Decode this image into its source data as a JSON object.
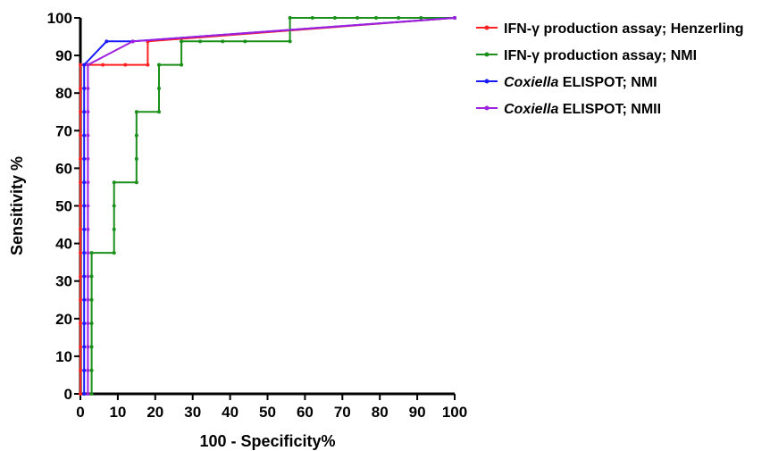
{
  "chart_data": {
    "type": "line",
    "xlabel": "100 - Specificity%",
    "ylabel": "Sensitivity %",
    "xlim": [
      0,
      100
    ],
    "ylim": [
      0,
      100
    ],
    "xticks": [
      0,
      10,
      20,
      30,
      40,
      50,
      60,
      70,
      80,
      90,
      100
    ],
    "yticks": [
      0,
      10,
      20,
      30,
      40,
      50,
      60,
      70,
      80,
      90,
      100
    ],
    "grid": false,
    "legend_position": "right",
    "series": [
      {
        "name_parts": [
          {
            "text": "IFN-γ production assay; Henzerling",
            "italic": false
          }
        ],
        "color": "#ff2020",
        "x": [
          0,
          0,
          0,
          0,
          0,
          0,
          0,
          0,
          0,
          0,
          0,
          0,
          0,
          0,
          0,
          1,
          6,
          12,
          18,
          18,
          18,
          100
        ],
        "y": [
          0,
          6.25,
          12.5,
          18.75,
          25,
          31.25,
          37.5,
          43.75,
          50,
          56.25,
          62.5,
          68.75,
          75,
          81.25,
          87.5,
          87.5,
          87.5,
          87.5,
          87.5,
          93.75,
          93.75,
          100
        ]
      },
      {
        "name_parts": [
          {
            "text": "IFN-γ production assay; NMI",
            "italic": false
          }
        ],
        "color": "#1a8f1a",
        "x": [
          3,
          3,
          3,
          3,
          3,
          3,
          3,
          9,
          9,
          9,
          9,
          15,
          15,
          15,
          15,
          21,
          21,
          21,
          21,
          27,
          27,
          27,
          32,
          38,
          44,
          56,
          56,
          62,
          68,
          74,
          79,
          85,
          91,
          100
        ],
        "y": [
          0,
          6.25,
          12.5,
          18.75,
          25,
          31.25,
          37.5,
          37.5,
          43.75,
          50,
          56.25,
          56.25,
          62.5,
          68.75,
          75,
          75,
          81.25,
          87.5,
          87.5,
          87.5,
          93.75,
          93.75,
          93.75,
          93.75,
          93.75,
          93.75,
          100,
          100,
          100,
          100,
          100,
          100,
          100,
          100
        ]
      },
      {
        "name_parts": [
          {
            "text": "Coxiella",
            "italic": true
          },
          {
            "text": " ELISPOT; NMI",
            "italic": false
          }
        ],
        "color": "#1a1aff",
        "x": [
          1,
          1,
          1,
          1,
          1,
          1,
          1,
          1,
          1,
          1,
          1,
          1,
          1,
          1,
          1,
          7,
          14,
          100
        ],
        "y": [
          0,
          6.25,
          12.5,
          18.75,
          25,
          31.25,
          37.5,
          43.75,
          50,
          56.25,
          62.5,
          68.75,
          75,
          81.25,
          87.5,
          93.75,
          93.75,
          100
        ]
      },
      {
        "name_parts": [
          {
            "text": "Coxiella",
            "italic": true
          },
          {
            "text": " ELISPOT; NMII",
            "italic": false
          }
        ],
        "color": "#a020e0",
        "x": [
          2,
          2,
          2,
          2,
          2,
          2,
          2,
          2,
          2,
          2,
          2,
          2,
          2,
          2,
          2,
          14,
          100
        ],
        "y": [
          0,
          6.25,
          12.5,
          18.75,
          25,
          31.25,
          37.5,
          43.75,
          50,
          56.25,
          62.5,
          68.75,
          75,
          81.25,
          87.5,
          93.75,
          100
        ]
      }
    ]
  }
}
